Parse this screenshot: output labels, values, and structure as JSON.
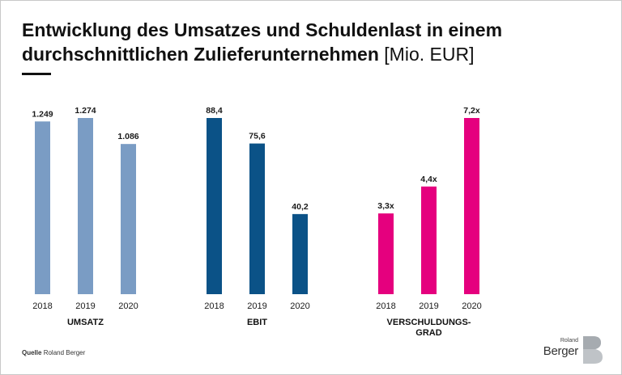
{
  "header": {
    "title_bold": "Entwicklung des Umsatzes und Schuldenlast in einem durchschnittlichen Zulieferunternehmen",
    "title_unit": "[Mio. EUR]"
  },
  "chart_data": [
    {
      "type": "bar",
      "label": "UMSATZ",
      "categories": [
        "2018",
        "2019",
        "2020"
      ],
      "values": [
        1249,
        1274,
        1086
      ],
      "value_labels": [
        "1.249",
        "1.274",
        "1.086"
      ],
      "color": "#7a9cc4"
    },
    {
      "type": "bar",
      "label": "EBIT",
      "categories": [
        "2018",
        "2019",
        "2020"
      ],
      "values": [
        88.4,
        75.6,
        40.2
      ],
      "value_labels": [
        "88,4",
        "75,6",
        "40,2"
      ],
      "color": "#0b5287"
    },
    {
      "type": "bar",
      "label": "VERSCHULDUNGS-GRAD",
      "label_lines": [
        "VERSCHULDUNGS-",
        "GRAD"
      ],
      "categories": [
        "2018",
        "2019",
        "2020"
      ],
      "values": [
        3.3,
        4.4,
        7.2
      ],
      "value_labels": [
        "3,3x",
        "4,4x",
        "7,2x"
      ],
      "color": "#e5007e"
    }
  ],
  "footer": {
    "source_label": "Quelle",
    "source_text": "Roland Berger",
    "logo_small": "Roland",
    "logo_main": "Berger"
  }
}
